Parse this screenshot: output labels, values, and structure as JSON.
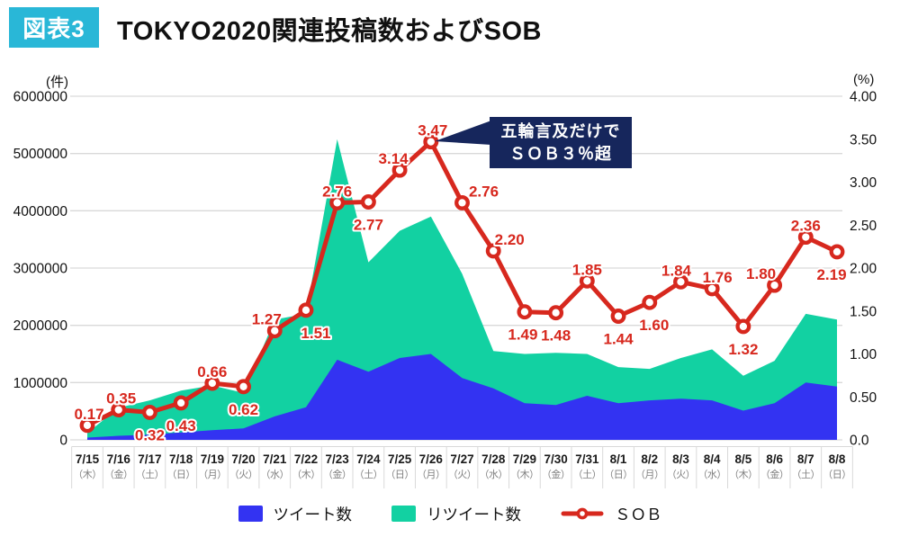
{
  "header": {
    "badge": "図表3",
    "title": "TOKYO2020関連投稿数およびSOB"
  },
  "axes": {
    "left_unit": "(件)",
    "right_unit": "(%)",
    "left_ticks": [
      "6000000",
      "5000000",
      "4000000",
      "3000000",
      "2000000",
      "1000000",
      "0"
    ],
    "right_ticks": [
      "4.00",
      "3.50",
      "3.00",
      "2.50",
      "2.00",
      "1.50",
      "1.00",
      "0.50",
      "0.0"
    ]
  },
  "annotation": {
    "line1": "五輪言及だけで",
    "line2": "ＳＯＢ３％超"
  },
  "colors": {
    "badge_cyan": "#29b7d7",
    "annotation_navy": "#16265c",
    "grid_gray": "#d9d9d9"
  },
  "chart_data": {
    "type": "combo (stacked area + line)",
    "title": "TOKYO2020関連投稿数およびSOB",
    "categories": [
      "7/15",
      "7/16",
      "7/17",
      "7/18",
      "7/19",
      "7/20",
      "7/21",
      "7/22",
      "7/23",
      "7/24",
      "7/25",
      "7/26",
      "7/27",
      "7/28",
      "7/29",
      "7/30",
      "7/31",
      "8/1",
      "8/2",
      "8/3",
      "8/4",
      "8/5",
      "8/6",
      "8/7",
      "8/8"
    ],
    "days": [
      "（木）",
      "（金）",
      "（土）",
      "（日）",
      "（月）",
      "（火）",
      "（水）",
      "（木）",
      "（金）",
      "（土）",
      "（日）",
      "（月）",
      "（火）",
      "（水）",
      "（木）",
      "（金）",
      "（土）",
      "（日）",
      "（月）",
      "（火）",
      "（水）",
      "（木）",
      "（金）",
      "（土）",
      "（日）"
    ],
    "left_axis": {
      "unit": "件",
      "min": 0,
      "max": 6000000,
      "step": 1000000
    },
    "right_axis": {
      "unit": "%",
      "min": 0,
      "max": 4,
      "step": 0.5
    },
    "grid": "horizontal only",
    "legend_position": "bottom center",
    "series": [
      {
        "name": "ツイート数",
        "type": "area",
        "stack": true,
        "color": "#3333f2",
        "axis": "left",
        "values": [
          40000,
          70000,
          90000,
          130000,
          170000,
          200000,
          410000,
          570000,
          1400000,
          1190000,
          1430000,
          1500000,
          1080000,
          900000,
          640000,
          610000,
          770000,
          640000,
          690000,
          720000,
          690000,
          510000,
          640000,
          1000000,
          930000
        ]
      },
      {
        "name": "リツイート数",
        "type": "area",
        "stack": true,
        "color": "#12d1a2",
        "axis": "left",
        "values": [
          80000,
          490000,
          600000,
          730000,
          780000,
          620000,
          1690000,
          1630000,
          3850000,
          1910000,
          2220000,
          2400000,
          1820000,
          650000,
          860000,
          910000,
          730000,
          630000,
          550000,
          710000,
          890000,
          610000,
          740000,
          1200000,
          1170000
        ]
      },
      {
        "name": "ＳＯＢ",
        "type": "line",
        "stack": false,
        "color": "#d7281e",
        "axis": "right",
        "values": [
          0.17,
          0.35,
          0.32,
          0.43,
          0.66,
          0.62,
          1.27,
          1.51,
          2.76,
          2.77,
          3.14,
          3.47,
          2.76,
          2.2,
          1.49,
          1.48,
          1.85,
          1.44,
          1.6,
          1.84,
          1.76,
          1.32,
          1.8,
          2.36,
          2.19
        ]
      }
    ],
    "sob_label_pos": [
      [
        "a",
        2
      ],
      [
        "a",
        3
      ],
      [
        "b",
        0
      ],
      [
        "b",
        0
      ],
      [
        "a",
        0
      ],
      [
        "b",
        0
      ],
      [
        "a",
        -9
      ],
      [
        "b",
        11
      ],
      [
        "a",
        0
      ],
      [
        "b",
        0
      ],
      [
        "a",
        -7
      ],
      [
        "a",
        2
      ],
      [
        "a",
        24
      ],
      [
        "a",
        18
      ],
      [
        "b",
        -2
      ],
      [
        "b",
        0
      ],
      [
        "a",
        0
      ],
      [
        "b",
        0
      ],
      [
        "b",
        5
      ],
      [
        "a",
        -5
      ],
      [
        "a",
        6
      ],
      [
        "b",
        0
      ],
      [
        "a",
        -15
      ],
      [
        "a",
        0
      ],
      [
        "b",
        -6
      ]
    ]
  }
}
